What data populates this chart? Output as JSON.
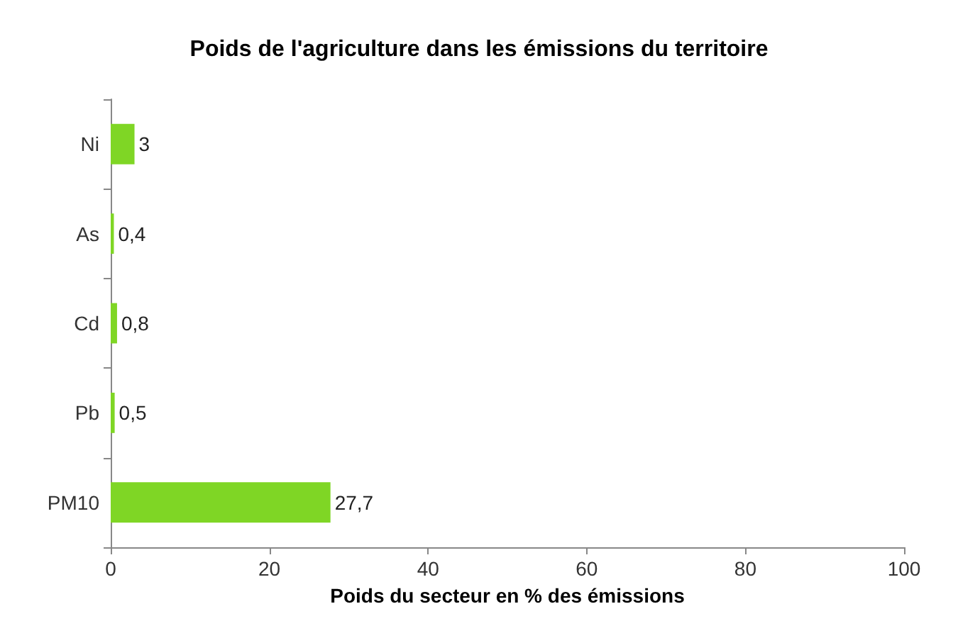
{
  "chart_data": {
    "type": "bar",
    "orientation": "horizontal",
    "title": "Poids de l'agriculture dans les émissions du territoire",
    "xlabel": "Poids du secteur en % des émissions",
    "categories": [
      "Ni",
      "As",
      "Cd",
      "Pb",
      "PM10"
    ],
    "values": [
      3,
      0.4,
      0.8,
      0.5,
      27.7
    ],
    "value_labels": [
      "3",
      "0,4",
      "0,8",
      "0,5",
      "27,7"
    ],
    "color": "#7fd625",
    "xlim": [
      0,
      100
    ],
    "xticks": [
      0,
      20,
      40,
      60,
      80,
      100
    ],
    "grid": false
  }
}
